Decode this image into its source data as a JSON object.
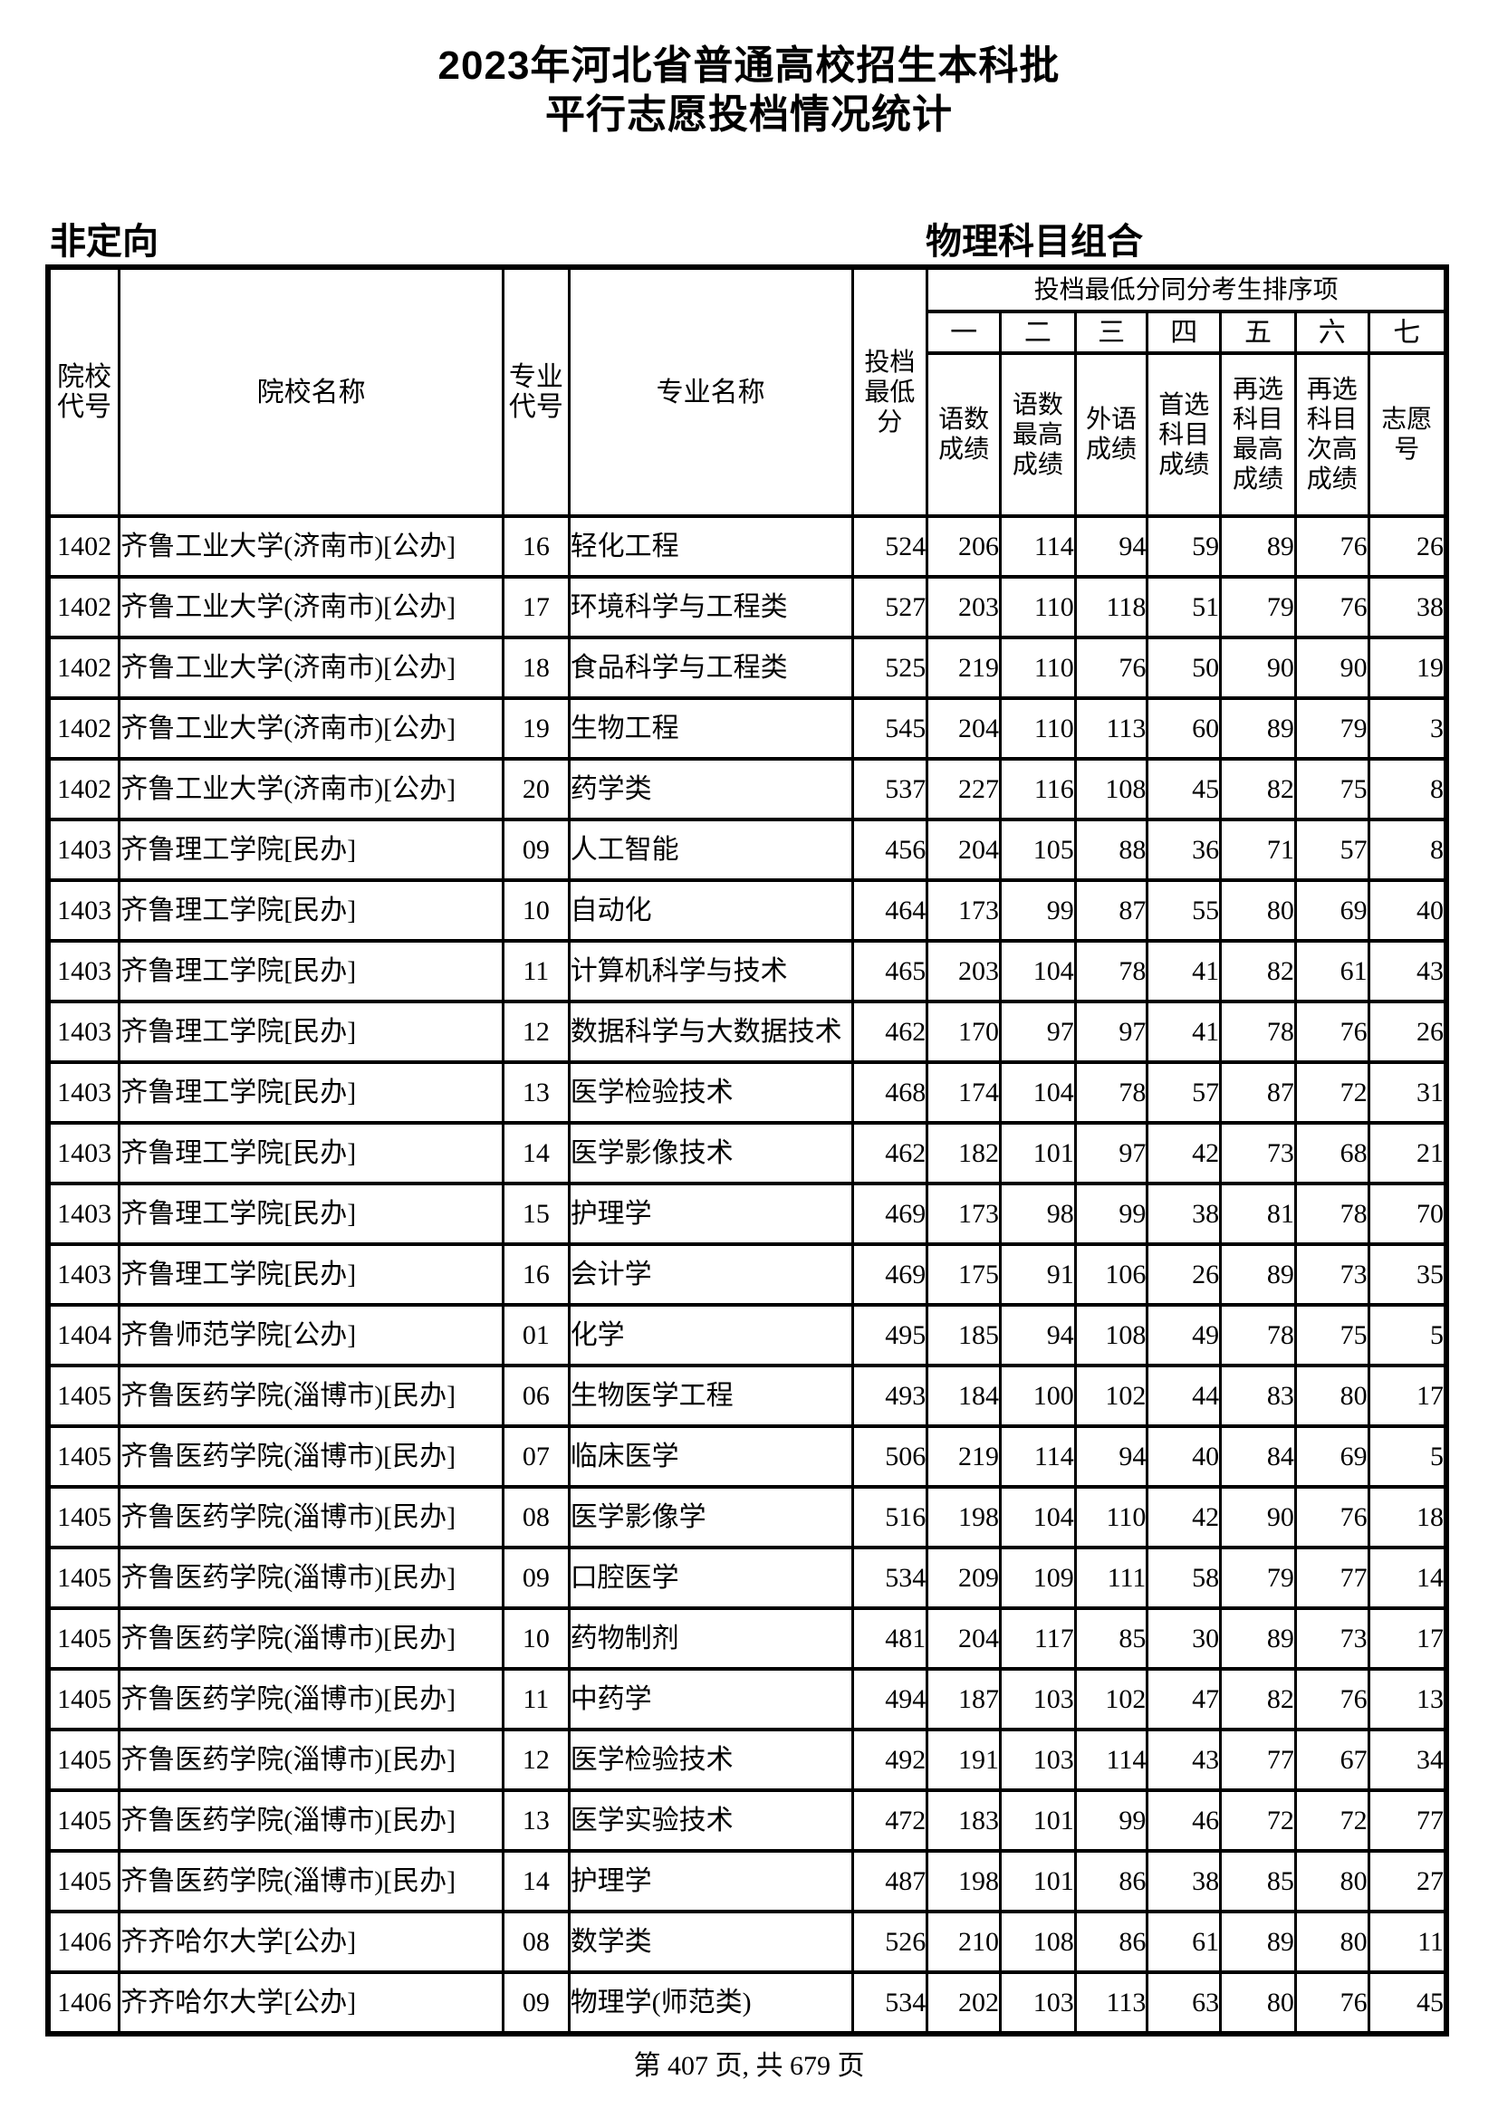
{
  "page": {
    "title_line1": "2023年河北省普通高校招生本科批",
    "title_line2": "平行志愿投档情况统计",
    "left_label": "非定向",
    "right_label": "物理科目组合",
    "footer": "第 407 页, 共 679 页"
  },
  "table": {
    "headers": {
      "college_code": "院校代号",
      "college_name": "院校名称",
      "major_code": "专业代号",
      "major_name": "专业名称",
      "min_score": "投档最低分",
      "tie_break_group": "投档最低分同分考生排序项",
      "tie_break_numbers": [
        "一",
        "二",
        "三",
        "四",
        "五",
        "六",
        "七"
      ],
      "tie_break_labels": [
        "语数成绩",
        "语数最高成绩",
        "外语成绩",
        "首选科目成绩",
        "再选科目最高成绩",
        "再选科目次高成绩",
        "志愿号"
      ]
    },
    "rows": [
      [
        "1402",
        "齐鲁工业大学(济南市)[公办]",
        "16",
        "轻化工程",
        "524",
        "206",
        "114",
        "94",
        "59",
        "89",
        "76",
        "26"
      ],
      [
        "1402",
        "齐鲁工业大学(济南市)[公办]",
        "17",
        "环境科学与工程类",
        "527",
        "203",
        "110",
        "118",
        "51",
        "79",
        "76",
        "38"
      ],
      [
        "1402",
        "齐鲁工业大学(济南市)[公办]",
        "18",
        "食品科学与工程类",
        "525",
        "219",
        "110",
        "76",
        "50",
        "90",
        "90",
        "19"
      ],
      [
        "1402",
        "齐鲁工业大学(济南市)[公办]",
        "19",
        "生物工程",
        "545",
        "204",
        "110",
        "113",
        "60",
        "89",
        "79",
        "3"
      ],
      [
        "1402",
        "齐鲁工业大学(济南市)[公办]",
        "20",
        "药学类",
        "537",
        "227",
        "116",
        "108",
        "45",
        "82",
        "75",
        "8"
      ],
      [
        "1403",
        "齐鲁理工学院[民办]",
        "09",
        "人工智能",
        "456",
        "204",
        "105",
        "88",
        "36",
        "71",
        "57",
        "8"
      ],
      [
        "1403",
        "齐鲁理工学院[民办]",
        "10",
        "自动化",
        "464",
        "173",
        "99",
        "87",
        "55",
        "80",
        "69",
        "40"
      ],
      [
        "1403",
        "齐鲁理工学院[民办]",
        "11",
        "计算机科学与技术",
        "465",
        "203",
        "104",
        "78",
        "41",
        "82",
        "61",
        "43"
      ],
      [
        "1403",
        "齐鲁理工学院[民办]",
        "12",
        "数据科学与大数据技术",
        "462",
        "170",
        "97",
        "97",
        "41",
        "78",
        "76",
        "26"
      ],
      [
        "1403",
        "齐鲁理工学院[民办]",
        "13",
        "医学检验技术",
        "468",
        "174",
        "104",
        "78",
        "57",
        "87",
        "72",
        "31"
      ],
      [
        "1403",
        "齐鲁理工学院[民办]",
        "14",
        "医学影像技术",
        "462",
        "182",
        "101",
        "97",
        "42",
        "73",
        "68",
        "21"
      ],
      [
        "1403",
        "齐鲁理工学院[民办]",
        "15",
        "护理学",
        "469",
        "173",
        "98",
        "99",
        "38",
        "81",
        "78",
        "70"
      ],
      [
        "1403",
        "齐鲁理工学院[民办]",
        "16",
        "会计学",
        "469",
        "175",
        "91",
        "106",
        "26",
        "89",
        "73",
        "35"
      ],
      [
        "1404",
        "齐鲁师范学院[公办]",
        "01",
        "化学",
        "495",
        "185",
        "94",
        "108",
        "49",
        "78",
        "75",
        "5"
      ],
      [
        "1405",
        "齐鲁医药学院(淄博市)[民办]",
        "06",
        "生物医学工程",
        "493",
        "184",
        "100",
        "102",
        "44",
        "83",
        "80",
        "17"
      ],
      [
        "1405",
        "齐鲁医药学院(淄博市)[民办]",
        "07",
        "临床医学",
        "506",
        "219",
        "114",
        "94",
        "40",
        "84",
        "69",
        "5"
      ],
      [
        "1405",
        "齐鲁医药学院(淄博市)[民办]",
        "08",
        "医学影像学",
        "516",
        "198",
        "104",
        "110",
        "42",
        "90",
        "76",
        "18"
      ],
      [
        "1405",
        "齐鲁医药学院(淄博市)[民办]",
        "09",
        "口腔医学",
        "534",
        "209",
        "109",
        "111",
        "58",
        "79",
        "77",
        "14"
      ],
      [
        "1405",
        "齐鲁医药学院(淄博市)[民办]",
        "10",
        "药物制剂",
        "481",
        "204",
        "117",
        "85",
        "30",
        "89",
        "73",
        "17"
      ],
      [
        "1405",
        "齐鲁医药学院(淄博市)[民办]",
        "11",
        "中药学",
        "494",
        "187",
        "103",
        "102",
        "47",
        "82",
        "76",
        "13"
      ],
      [
        "1405",
        "齐鲁医药学院(淄博市)[民办]",
        "12",
        "医学检验技术",
        "492",
        "191",
        "103",
        "114",
        "43",
        "77",
        "67",
        "34"
      ],
      [
        "1405",
        "齐鲁医药学院(淄博市)[民办]",
        "13",
        "医学实验技术",
        "472",
        "183",
        "101",
        "99",
        "46",
        "72",
        "72",
        "77"
      ],
      [
        "1405",
        "齐鲁医药学院(淄博市)[民办]",
        "14",
        "护理学",
        "487",
        "198",
        "101",
        "86",
        "38",
        "85",
        "80",
        "27"
      ],
      [
        "1406",
        "齐齐哈尔大学[公办]",
        "08",
        "数学类",
        "526",
        "210",
        "108",
        "86",
        "61",
        "89",
        "80",
        "11"
      ],
      [
        "1406",
        "齐齐哈尔大学[公办]",
        "09",
        "物理学(师范类)",
        "534",
        "202",
        "103",
        "113",
        "63",
        "80",
        "76",
        "45"
      ]
    ]
  }
}
